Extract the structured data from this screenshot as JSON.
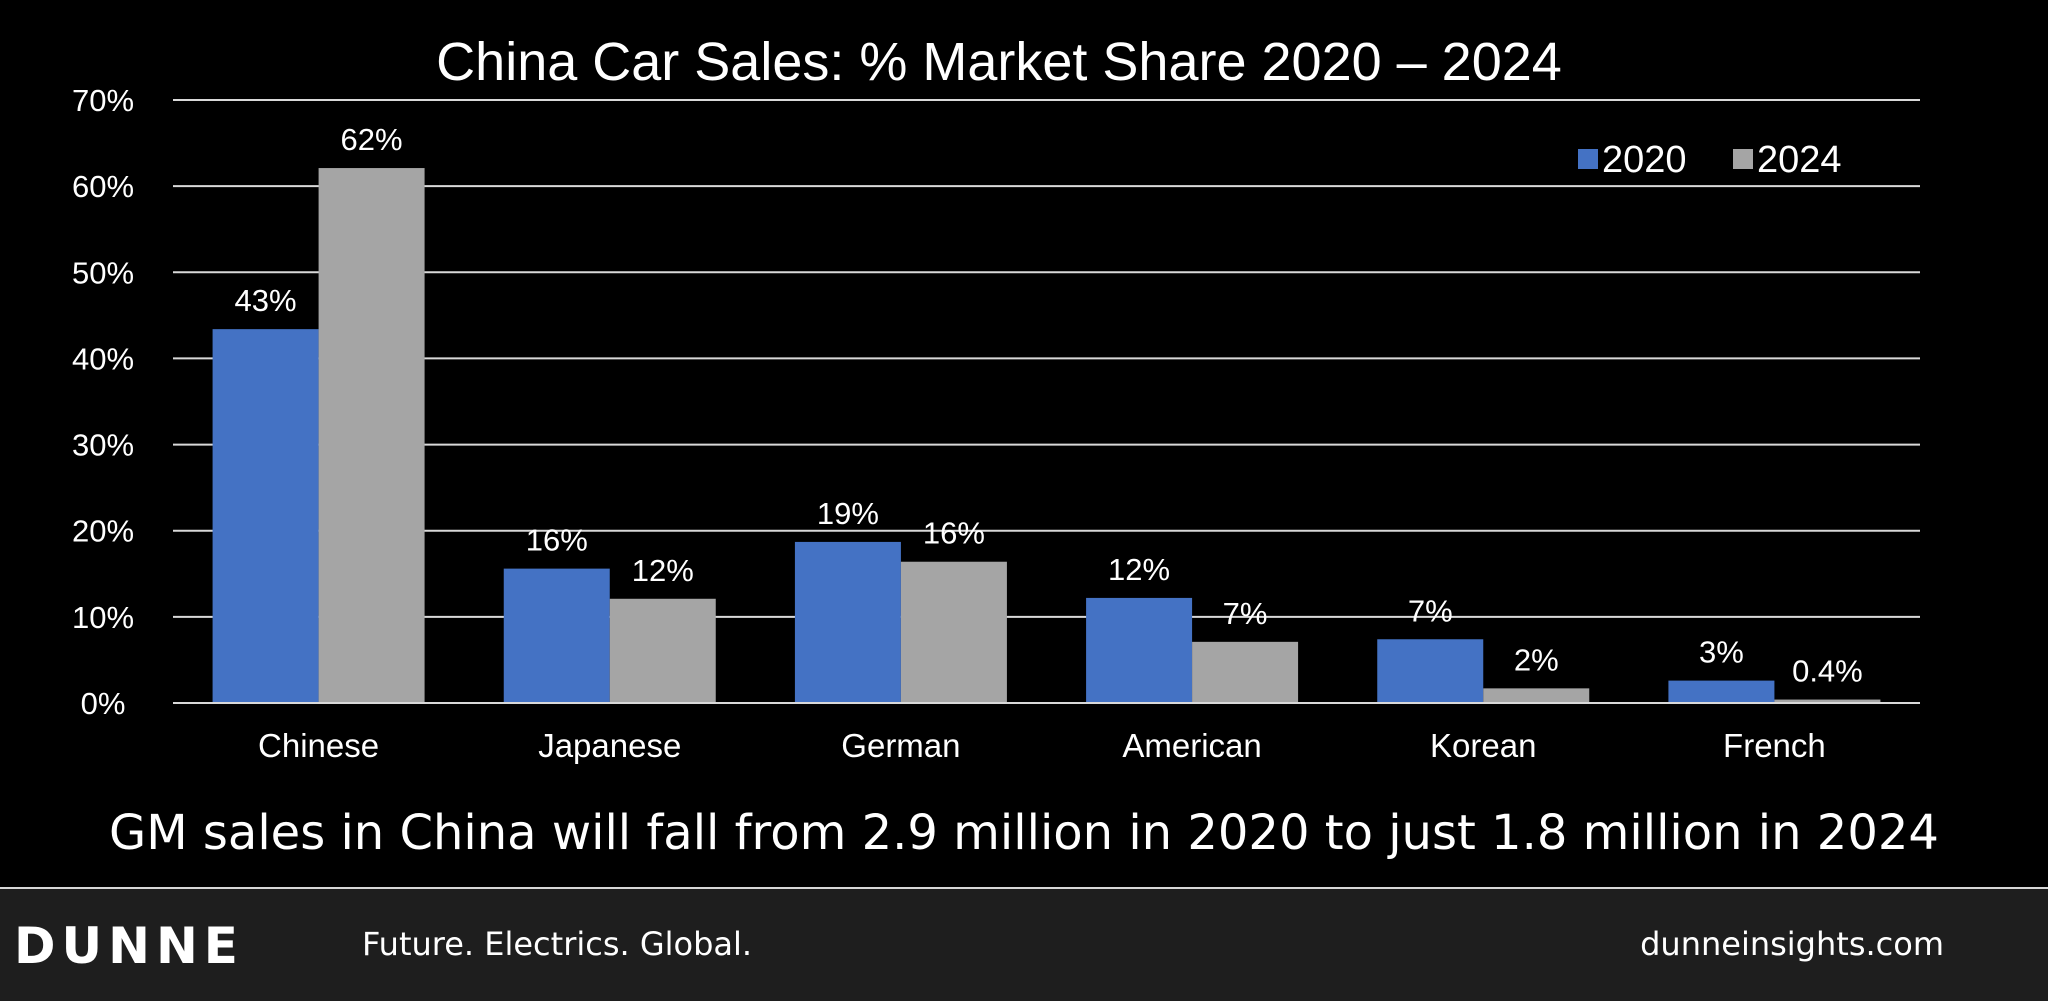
{
  "chart_data": {
    "type": "bar",
    "title": "China Car Sales: % Market Share 2020 – 2024",
    "categories": [
      "Chinese",
      "Japanese",
      "German",
      "American",
      "Korean",
      "French"
    ],
    "series": [
      {
        "name": "2020",
        "color": "#4472C4",
        "values": [
          43.4,
          15.6,
          18.7,
          12.2,
          7.4,
          2.6
        ],
        "labels": [
          "43%",
          "16%",
          "19%",
          "12%",
          "7%",
          "3%"
        ]
      },
      {
        "name": "2024",
        "color": "#A5A5A5",
        "values": [
          62.1,
          12.1,
          16.4,
          7.1,
          1.7,
          0.4
        ],
        "labels": [
          "62%",
          "12%",
          "16%",
          "7%",
          "2%",
          "0.4%"
        ]
      }
    ],
    "ylim": [
      0,
      70
    ],
    "yticks": [
      "0%",
      "10%",
      "20%",
      "30%",
      "40%",
      "50%",
      "60%",
      "70%"
    ],
    "grid": true,
    "legend_position": "top-right",
    "xlabel": "",
    "ylabel": ""
  },
  "subtitle": "GM sales in China will fall from 2.9 million in 2020 to just 1.8 million in 2024",
  "footer": {
    "logo": "DUNNE",
    "tagline": "Future. Electrics. Global.",
    "url": "dunneinsights.com"
  }
}
